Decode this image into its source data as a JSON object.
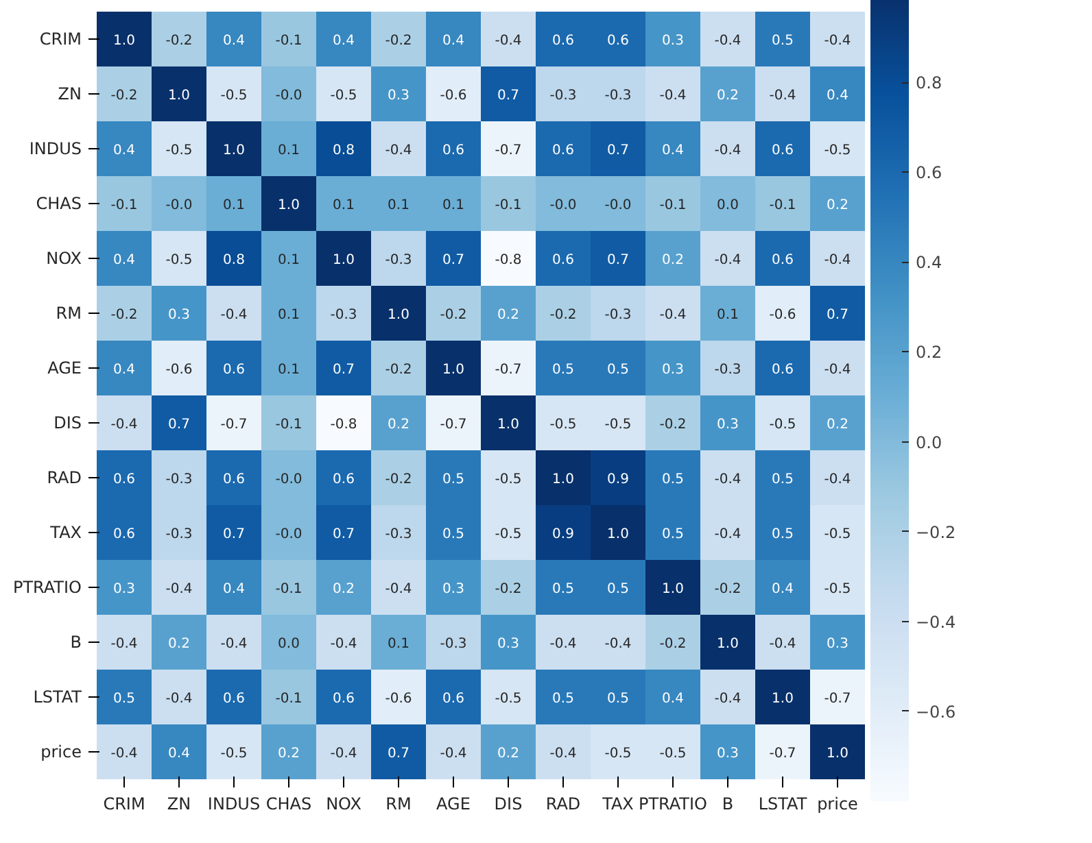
{
  "chart_data": {
    "type": "heatmap",
    "categories": [
      "CRIM",
      "ZN",
      "INDUS",
      "CHAS",
      "NOX",
      "RM",
      "AGE",
      "DIS",
      "RAD",
      "TAX",
      "PTRATIO",
      "B",
      "LSTAT",
      "price"
    ],
    "y_categories": [
      "CRIM",
      "ZN",
      "INDUS",
      "CHAS",
      "NOX",
      "RM",
      "AGE",
      "DIS",
      "RAD",
      "TAX",
      "PTRATIO",
      "B",
      "LSTAT",
      "price"
    ],
    "cells": [
      [
        1.0,
        -0.2,
        0.4,
        -0.1,
        0.4,
        -0.2,
        0.4,
        -0.4,
        0.6,
        0.6,
        0.3,
        -0.4,
        0.5,
        -0.4
      ],
      [
        -0.2,
        1.0,
        -0.5,
        0.0,
        -0.5,
        0.3,
        -0.6,
        0.7,
        -0.3,
        -0.3,
        -0.4,
        0.2,
        -0.4,
        0.4
      ],
      [
        0.4,
        -0.5,
        1.0,
        0.1,
        0.8,
        -0.4,
        0.6,
        -0.7,
        0.6,
        0.7,
        0.4,
        -0.4,
        0.6,
        -0.5
      ],
      [
        -0.1,
        0.0,
        0.1,
        1.0,
        0.1,
        0.1,
        0.1,
        -0.1,
        0.0,
        0.0,
        -0.1,
        0.0,
        -0.1,
        0.2
      ],
      [
        0.4,
        -0.5,
        0.8,
        0.1,
        1.0,
        -0.3,
        0.7,
        -0.8,
        0.6,
        0.7,
        0.2,
        -0.4,
        0.6,
        -0.4
      ],
      [
        -0.2,
        0.3,
        -0.4,
        0.1,
        -0.3,
        1.0,
        -0.2,
        0.2,
        -0.2,
        -0.3,
        -0.4,
        0.1,
        -0.6,
        0.7
      ],
      [
        0.4,
        -0.6,
        0.6,
        0.1,
        0.7,
        -0.2,
        1.0,
        -0.7,
        0.5,
        0.5,
        0.3,
        -0.3,
        0.6,
        -0.4
      ],
      [
        -0.4,
        0.7,
        -0.7,
        -0.1,
        -0.8,
        0.2,
        -0.7,
        1.0,
        -0.5,
        -0.5,
        -0.2,
        0.3,
        -0.5,
        0.2
      ],
      [
        0.6,
        -0.3,
        0.6,
        0.0,
        0.6,
        -0.2,
        0.5,
        -0.5,
        1.0,
        0.9,
        0.5,
        -0.4,
        0.5,
        -0.4
      ],
      [
        0.6,
        -0.3,
        0.7,
        0.0,
        0.7,
        -0.3,
        0.5,
        -0.5,
        0.9,
        1.0,
        0.5,
        -0.4,
        0.5,
        -0.5
      ],
      [
        0.3,
        -0.4,
        0.4,
        -0.1,
        0.2,
        -0.4,
        0.3,
        -0.2,
        0.5,
        0.5,
        1.0,
        -0.2,
        0.4,
        -0.5
      ],
      [
        -0.4,
        0.2,
        -0.4,
        0.0,
        -0.4,
        0.1,
        -0.3,
        0.3,
        -0.4,
        -0.4,
        -0.2,
        1.0,
        -0.4,
        0.3
      ],
      [
        0.5,
        -0.4,
        0.6,
        -0.1,
        0.6,
        -0.6,
        0.6,
        -0.5,
        0.5,
        0.5,
        0.4,
        -0.4,
        1.0,
        -0.7
      ],
      [
        -0.4,
        0.4,
        -0.5,
        0.2,
        -0.4,
        0.7,
        -0.4,
        0.2,
        -0.4,
        -0.5,
        -0.5,
        0.3,
        -0.7,
        1.0
      ]
    ],
    "cell_labels": [
      [
        "1.0",
        "-0.2",
        "0.4",
        "-0.1",
        "0.4",
        "-0.2",
        "0.4",
        "-0.4",
        "0.6",
        "0.6",
        "0.3",
        "-0.4",
        "0.5",
        "-0.4"
      ],
      [
        "-0.2",
        "1.0",
        "-0.5",
        "-0.0",
        "-0.5",
        "0.3",
        "-0.6",
        "0.7",
        "-0.3",
        "-0.3",
        "-0.4",
        "0.2",
        "-0.4",
        "0.4"
      ],
      [
        "0.4",
        "-0.5",
        "1.0",
        "0.1",
        "0.8",
        "-0.4",
        "0.6",
        "-0.7",
        "0.6",
        "0.7",
        "0.4",
        "-0.4",
        "0.6",
        "-0.5"
      ],
      [
        "-0.1",
        "-0.0",
        "0.1",
        "1.0",
        "0.1",
        "0.1",
        "0.1",
        "-0.1",
        "-0.0",
        "-0.0",
        "-0.1",
        "0.0",
        "-0.1",
        "0.2"
      ],
      [
        "0.4",
        "-0.5",
        "0.8",
        "0.1",
        "1.0",
        "-0.3",
        "0.7",
        "-0.8",
        "0.6",
        "0.7",
        "0.2",
        "-0.4",
        "0.6",
        "-0.4"
      ],
      [
        "-0.2",
        "0.3",
        "-0.4",
        "0.1",
        "-0.3",
        "1.0",
        "-0.2",
        "0.2",
        "-0.2",
        "-0.3",
        "-0.4",
        "0.1",
        "-0.6",
        "0.7"
      ],
      [
        "0.4",
        "-0.6",
        "0.6",
        "0.1",
        "0.7",
        "-0.2",
        "1.0",
        "-0.7",
        "0.5",
        "0.5",
        "0.3",
        "-0.3",
        "0.6",
        "-0.4"
      ],
      [
        "-0.4",
        "0.7",
        "-0.7",
        "-0.1",
        "-0.8",
        "0.2",
        "-0.7",
        "1.0",
        "-0.5",
        "-0.5",
        "-0.2",
        "0.3",
        "-0.5",
        "0.2"
      ],
      [
        "0.6",
        "-0.3",
        "0.6",
        "-0.0",
        "0.6",
        "-0.2",
        "0.5",
        "-0.5",
        "1.0",
        "0.9",
        "0.5",
        "-0.4",
        "0.5",
        "-0.4"
      ],
      [
        "0.6",
        "-0.3",
        "0.7",
        "-0.0",
        "0.7",
        "-0.3",
        "0.5",
        "-0.5",
        "0.9",
        "1.0",
        "0.5",
        "-0.4",
        "0.5",
        "-0.5"
      ],
      [
        "0.3",
        "-0.4",
        "0.4",
        "-0.1",
        "0.2",
        "-0.4",
        "0.3",
        "-0.2",
        "0.5",
        "0.5",
        "1.0",
        "-0.2",
        "0.4",
        "-0.5"
      ],
      [
        "-0.4",
        "0.2",
        "-0.4",
        "0.0",
        "-0.4",
        "0.1",
        "-0.3",
        "0.3",
        "-0.4",
        "-0.4",
        "-0.2",
        "1.0",
        "-0.4",
        "0.3"
      ],
      [
        "0.5",
        "-0.4",
        "0.6",
        "-0.1",
        "0.6",
        "-0.6",
        "0.6",
        "-0.5",
        "0.5",
        "0.5",
        "0.4",
        "-0.4",
        "1.0",
        "-0.7"
      ],
      [
        "-0.4",
        "0.4",
        "-0.5",
        "0.2",
        "-0.4",
        "0.7",
        "-0.4",
        "0.2",
        "-0.4",
        "-0.5",
        "-0.5",
        "0.3",
        "-0.7",
        "1.0"
      ]
    ],
    "clim": [
      -0.8,
      1.0
    ],
    "cticks": [
      -0.6,
      -0.4,
      -0.2,
      {
        "value": 0,
        "label": "0.0"
      },
      0.2,
      0.4,
      0.6,
      0.8
    ]
  }
}
